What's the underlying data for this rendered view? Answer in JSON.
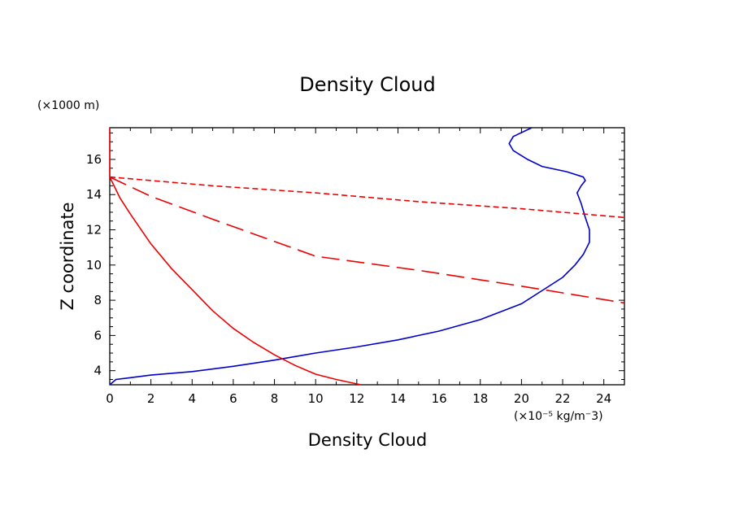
{
  "chart_data": {
    "type": "line",
    "title": "Density Cloud",
    "xlabel": "Density Cloud",
    "ylabel": "Z coordinate",
    "x_unit": "(×10⁻⁵ kg/m⁻3)",
    "y_unit": "(×1000 m)",
    "xlim": [
      0,
      25
    ],
    "ylim": [
      3.2,
      17.8
    ],
    "xticks": [
      0,
      2,
      4,
      6,
      8,
      10,
      12,
      14,
      16,
      18,
      20,
      22,
      24
    ],
    "yticks": [
      4,
      6,
      8,
      10,
      12,
      14,
      16
    ],
    "grid": false,
    "series": [
      {
        "color": "#0000cc",
        "style": "solid",
        "x": [
          0,
          0.3,
          1,
          2,
          4,
          6,
          8,
          10,
          12,
          14,
          16,
          18,
          20,
          21.2,
          22,
          22.6,
          23,
          23.3,
          23.3,
          23.1,
          22.9,
          22.7,
          22.9,
          23.1,
          23.0,
          22.2,
          21.0,
          20.3,
          19.6,
          19.4,
          19.6,
          20.5
        ],
        "y": [
          3.2,
          3.5,
          3.6,
          3.75,
          3.95,
          4.25,
          4.6,
          5.0,
          5.35,
          5.75,
          6.25,
          6.9,
          7.8,
          8.7,
          9.3,
          10.0,
          10.6,
          11.3,
          12.0,
          12.7,
          13.5,
          14.1,
          14.5,
          14.8,
          15.0,
          15.3,
          15.6,
          16.0,
          16.5,
          16.9,
          17.3,
          17.8
        ]
      },
      {
        "color": "#ee0000",
        "style": "solid",
        "x": [
          0,
          0.5,
          1,
          2,
          3,
          4,
          5,
          6,
          7,
          8,
          9,
          10,
          11,
          12.2
        ],
        "y": [
          15.0,
          13.8,
          12.9,
          11.2,
          9.8,
          8.6,
          7.4,
          6.4,
          5.6,
          4.9,
          4.3,
          3.8,
          3.5,
          3.2
        ],
        "extra": [
          [
            0,
            17.8
          ],
          [
            0,
            15.0
          ]
        ]
      },
      {
        "color": "#ee0000",
        "style": "long-dash",
        "x": [
          0,
          2,
          5,
          10,
          15,
          20,
          25
        ],
        "y": [
          15.0,
          13.9,
          12.6,
          10.5,
          9.7,
          8.8,
          7.85
        ]
      },
      {
        "color": "#ee0000",
        "style": "short-dash",
        "x": [
          0,
          5,
          10,
          15,
          20,
          25
        ],
        "y": [
          15.0,
          14.5,
          14.1,
          13.6,
          13.2,
          12.7
        ]
      }
    ]
  }
}
